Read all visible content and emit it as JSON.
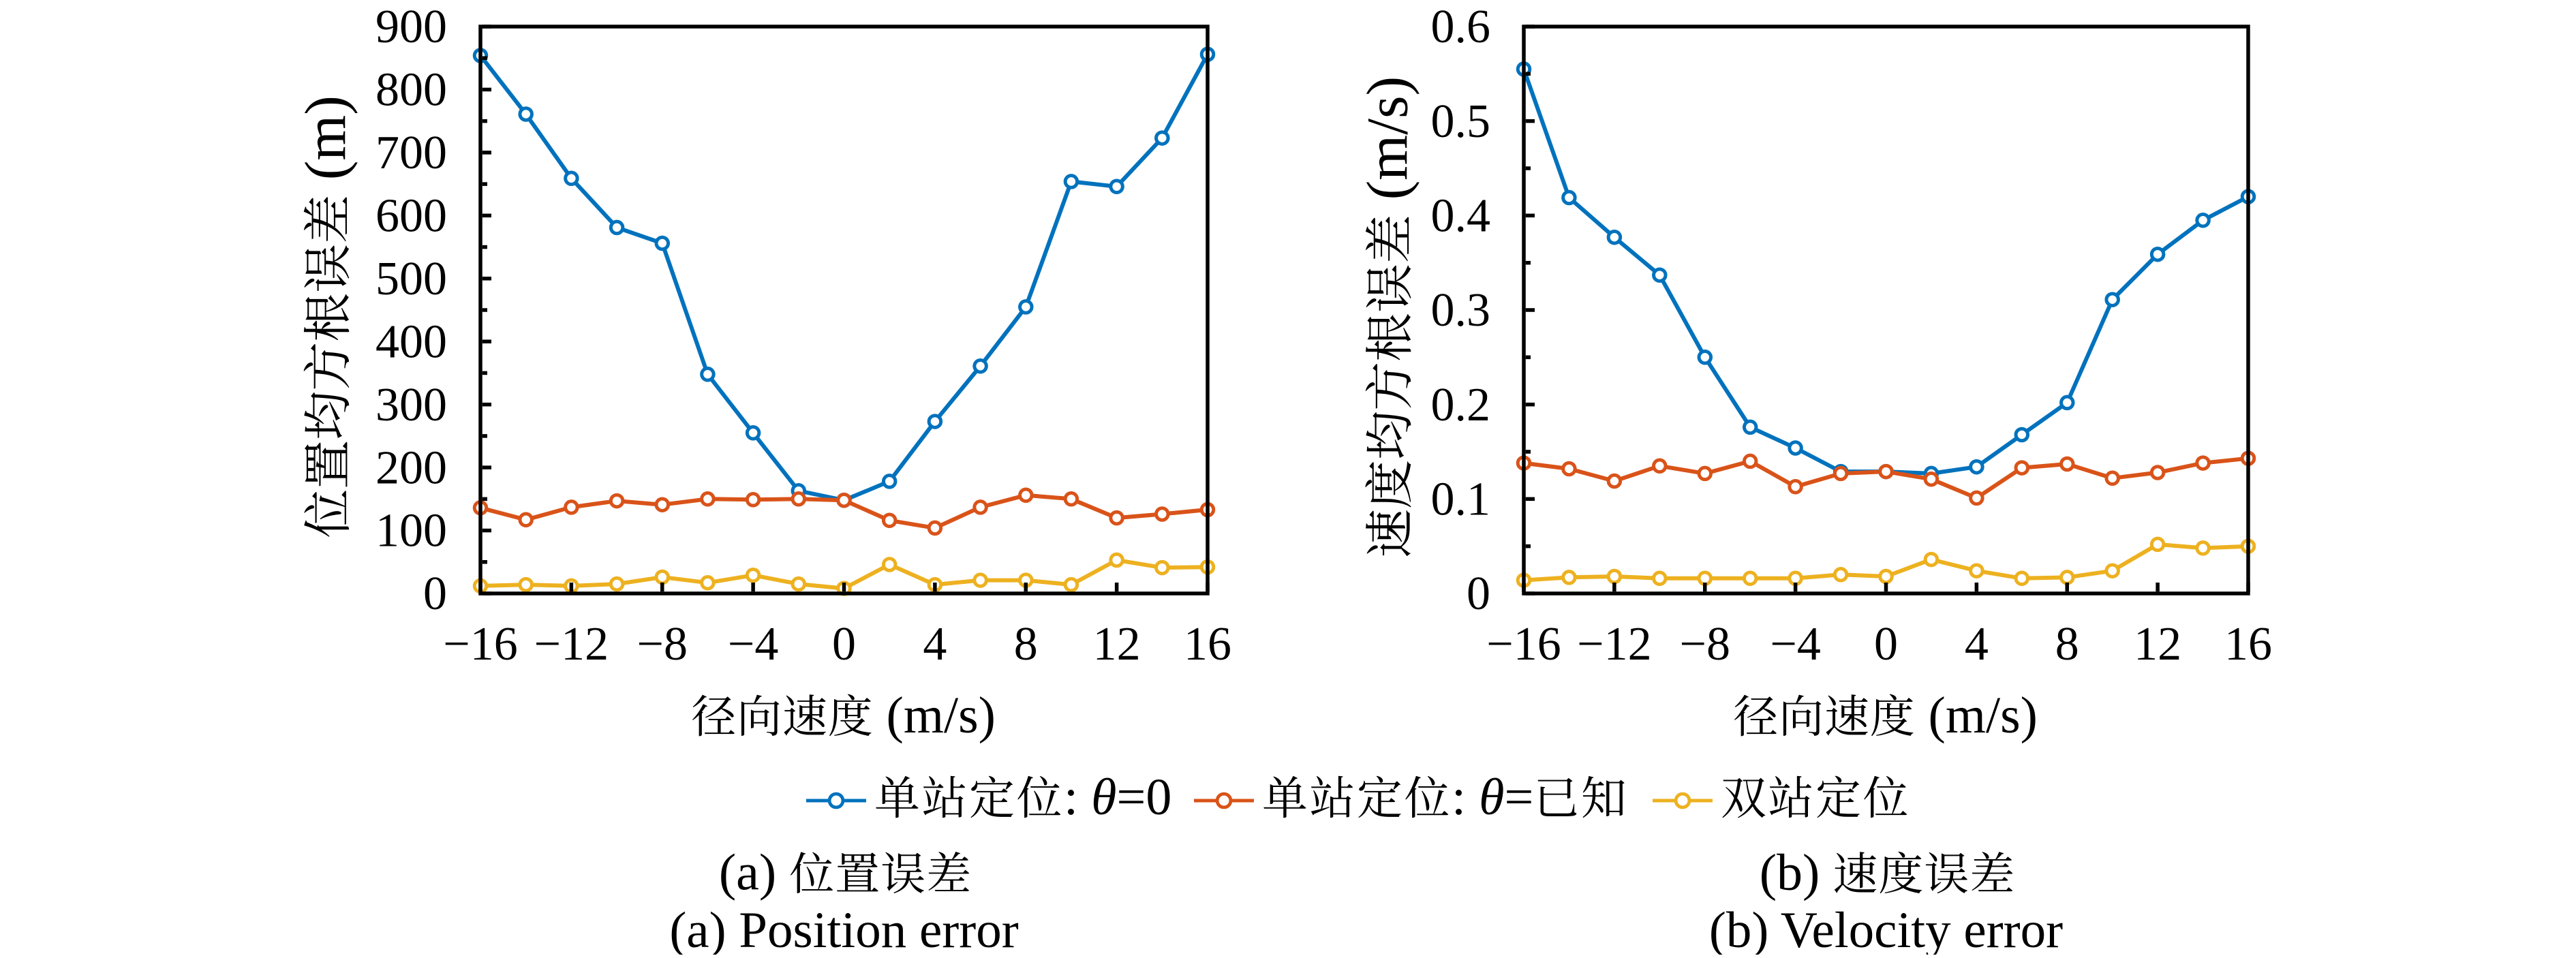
{
  "figure": {
    "background": "#ffffff",
    "text_color": "#000000",
    "axis_color": "#000000"
  },
  "legend": {
    "items": [
      {
        "label": "单站定位: θ=0",
        "color": "#0072BD"
      },
      {
        "label": "单站定位: θ=已知",
        "color": "#D95319"
      },
      {
        "label": "双站定位",
        "color": "#EDB120"
      }
    ]
  },
  "chart_data": [
    {
      "type": "line",
      "title": "",
      "xlabel": "径向速度 (m/s)",
      "ylabel": "位置均方根误差 (m)",
      "xlim": [
        -16,
        16
      ],
      "ylim": [
        0,
        900
      ],
      "xticks": [
        -16,
        -12,
        -8,
        -4,
        0,
        4,
        8,
        12,
        16
      ],
      "xticklabels": [
        "−16",
        "−12",
        "−8",
        "−4",
        "0",
        "4",
        "8",
        "12",
        "16"
      ],
      "yticks": [
        0,
        100,
        200,
        300,
        400,
        500,
        600,
        700,
        800,
        900
      ],
      "yticklabels": [
        "0",
        "100",
        "200",
        "300",
        "400",
        "500",
        "600",
        "700",
        "800",
        "900"
      ],
      "y_minor_step": 50,
      "grid": false,
      "legend_position": "south outside",
      "x": [
        -16,
        -14,
        -12,
        -10,
        -8,
        -6,
        -4,
        -2,
        0,
        2,
        4,
        6,
        8,
        10,
        12,
        14,
        16
      ],
      "series": [
        {
          "name": "单站定位: θ=0",
          "color": "#0072BD",
          "values": [
            854,
            761,
            659,
            581,
            556,
            348,
            255,
            163,
            148,
            178,
            273,
            361,
            455,
            654,
            646,
            723,
            856
          ]
        },
        {
          "name": "单站定位: θ=已知",
          "color": "#D95319",
          "values": [
            136,
            117,
            137,
            147,
            141,
            150,
            149,
            150,
            148,
            116,
            104,
            137,
            156,
            150,
            120,
            126,
            133
          ]
        },
        {
          "name": "双站定位",
          "color": "#EDB120",
          "values": [
            12,
            14,
            12,
            15,
            26,
            17,
            29,
            15,
            8,
            46,
            14,
            21,
            21,
            14,
            53,
            41,
            42
          ]
        }
      ],
      "caption_zh": "(a) 位置误差",
      "caption_en": "(a) Position error"
    },
    {
      "type": "line",
      "title": "",
      "xlabel": "径向速度 (m/s)",
      "ylabel": "速度均方根误差 (m/s)",
      "xlim": [
        -16,
        16
      ],
      "ylim": [
        0,
        0.6
      ],
      "xticks": [
        -16,
        -12,
        -8,
        -4,
        0,
        4,
        8,
        12,
        16
      ],
      "xticklabels": [
        "−16",
        "−12",
        "−8",
        "−4",
        "0",
        "4",
        "8",
        "12",
        "16"
      ],
      "yticks": [
        0,
        0.1,
        0.2,
        0.3,
        0.4,
        0.5,
        0.6
      ],
      "yticklabels": [
        "0",
        "0.1",
        "0.2",
        "0.3",
        "0.4",
        "0.5",
        "0.6"
      ],
      "y_minor_step": 0.05,
      "grid": false,
      "legend_position": "south outside",
      "x": [
        -16,
        -14,
        -12,
        -10,
        -8,
        -6,
        -4,
        -2,
        0,
        2,
        4,
        6,
        8,
        10,
        12,
        14,
        16
      ],
      "series": [
        {
          "name": "单站定位: θ=0",
          "color": "#0072BD",
          "values": [
            0.555,
            0.419,
            0.377,
            0.337,
            0.25,
            0.176,
            0.154,
            0.129,
            0.129,
            0.127,
            0.134,
            0.168,
            0.202,
            0.311,
            0.359,
            0.395,
            0.42
          ]
        },
        {
          "name": "单站定位: θ=已知",
          "color": "#D95319",
          "values": [
            0.138,
            0.132,
            0.119,
            0.135,
            0.127,
            0.14,
            0.113,
            0.127,
            0.129,
            0.121,
            0.101,
            0.133,
            0.137,
            0.122,
            0.128,
            0.138,
            0.143
          ]
        },
        {
          "name": "双站定位",
          "color": "#EDB120",
          "values": [
            0.014,
            0.017,
            0.018,
            0.016,
            0.016,
            0.016,
            0.016,
            0.02,
            0.018,
            0.036,
            0.024,
            0.016,
            0.017,
            0.024,
            0.052,
            0.048,
            0.05
          ]
        }
      ],
      "caption_zh": "(b) 速度误差",
      "caption_en": "(b) Velocity error"
    }
  ]
}
